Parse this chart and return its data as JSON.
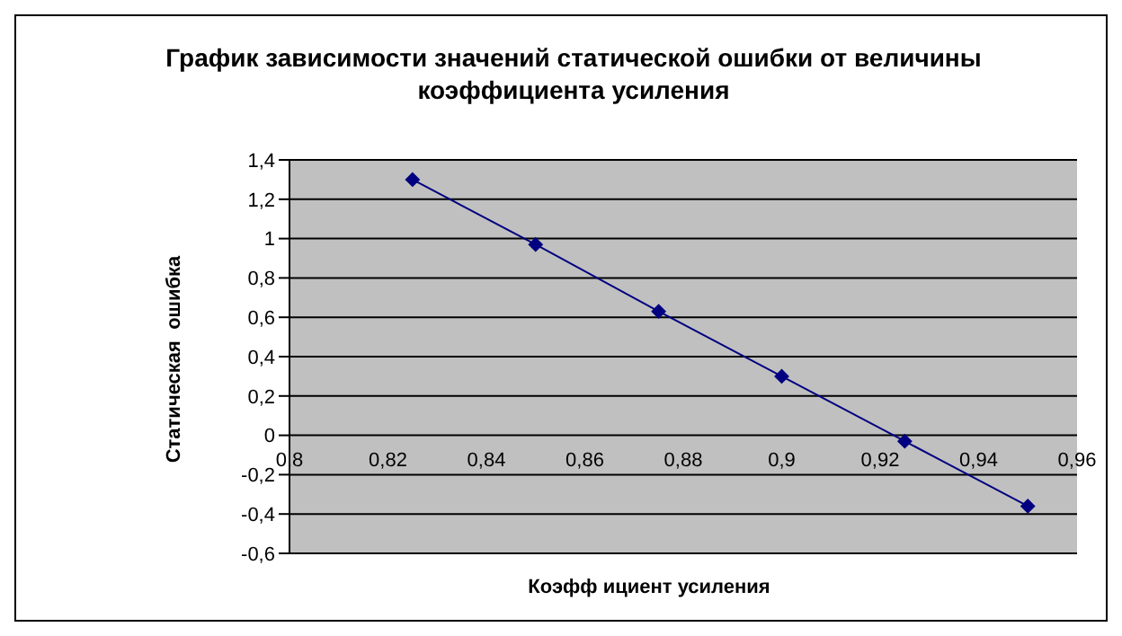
{
  "chart_data": {
    "type": "line",
    "title": "График зависимости значений статической ошибки от величины коэффициента усиления",
    "xlabel": "Коэфф ициент усиления",
    "ylabel": "Статическая  ошибка",
    "x": [
      0.825,
      0.85,
      0.875,
      0.9,
      0.925,
      0.95
    ],
    "series": [
      {
        "color": "#000080",
        "values": [
          1.3,
          0.97,
          0.63,
          0.3,
          -0.03,
          -0.36
        ]
      }
    ],
    "xlim": [
      0.8,
      0.96
    ],
    "xticks": [
      {
        "value": 0.8,
        "label": "0,8"
      },
      {
        "value": 0.82,
        "label": "0,82"
      },
      {
        "value": 0.84,
        "label": "0,84"
      },
      {
        "value": 0.86,
        "label": "0,86"
      },
      {
        "value": 0.88,
        "label": "0,88"
      },
      {
        "value": 0.9,
        "label": "0,9"
      },
      {
        "value": 0.92,
        "label": "0,92"
      },
      {
        "value": 0.94,
        "label": "0,94"
      },
      {
        "value": 0.96,
        "label": "0,96"
      }
    ],
    "ylim": [
      -0.6,
      1.4
    ],
    "yticks": [
      {
        "value": -0.6,
        "label": "-0,6"
      },
      {
        "value": -0.4,
        "label": "-0,4"
      },
      {
        "value": -0.2,
        "label": "-0,2"
      },
      0,
      {
        "value": 0.2,
        "label": "0,2"
      },
      {
        "value": 0.4,
        "label": "0,4"
      },
      {
        "value": 0.6,
        "label": "0,6"
      },
      {
        "value": 0.8,
        "label": "0,8"
      },
      1,
      {
        "value": 1.2,
        "label": "1,2"
      },
      {
        "value": 1.4,
        "label": "1,4"
      }
    ],
    "grid": "y",
    "marker": "diamond",
    "line_style": "solid",
    "legend": false
  }
}
